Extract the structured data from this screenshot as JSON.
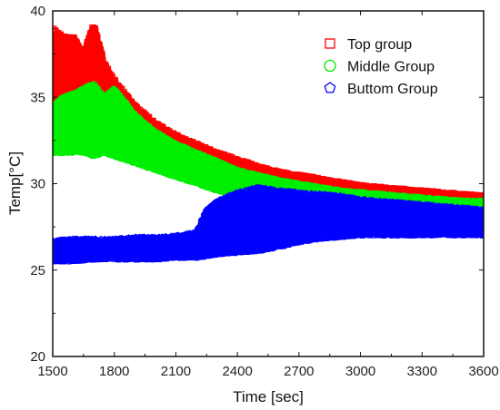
{
  "chart_data": {
    "type": "scatter",
    "title": "",
    "xlabel": "Time [sec]",
    "ylabel": "Temp[°C]",
    "xlim": [
      1500,
      3600
    ],
    "ylim": [
      20,
      40
    ],
    "xticks": [
      1500,
      1800,
      2100,
      2400,
      2700,
      3000,
      3300,
      3600
    ],
    "yticks": [
      20,
      25,
      30,
      35,
      40
    ],
    "grid": false,
    "legend_position": "top-right",
    "series": [
      {
        "name": "Top group",
        "marker": "square",
        "color": "#ff0000",
        "x": [
          1500,
          1550,
          1600,
          1650,
          1700,
          1750,
          1800,
          1900,
          2000,
          2100,
          2200,
          2300,
          2400,
          2500,
          2600,
          2700,
          2800,
          2900,
          3000,
          3100,
          3200,
          3300,
          3400,
          3500,
          3600
        ],
        "low": [
          34.5,
          34.0,
          34.2,
          33.8,
          34.0,
          34.0,
          33.8,
          33.0,
          32.5,
          32.0,
          31.5,
          31.2,
          30.9,
          30.6,
          30.3,
          30.1,
          29.9,
          29.7,
          29.5,
          29.4,
          29.3,
          29.2,
          29.1,
          29.0,
          28.9
        ],
        "high": [
          39.0,
          38.5,
          38.5,
          37.5,
          39.2,
          37.0,
          36.0,
          34.5,
          33.5,
          32.8,
          32.3,
          31.8,
          31.4,
          31.0,
          30.7,
          30.5,
          30.3,
          30.1,
          29.9,
          29.8,
          29.7,
          29.6,
          29.5,
          29.4,
          29.3
        ]
      },
      {
        "name": "Middle Group",
        "marker": "circle",
        "color": "#00ee00",
        "x": [
          1500,
          1550,
          1600,
          1650,
          1700,
          1750,
          1800,
          1900,
          2000,
          2100,
          2200,
          2300,
          2400,
          2500,
          2600,
          2700,
          2800,
          2900,
          3000,
          3100,
          3200,
          3300,
          3400,
          3500,
          3600
        ],
        "low": [
          31.8,
          31.8,
          31.8,
          31.8,
          31.6,
          31.8,
          31.6,
          31.2,
          30.8,
          30.4,
          30.0,
          29.6,
          29.3,
          29.1,
          29.0,
          28.9,
          28.9,
          28.8,
          28.7,
          28.7,
          28.7,
          28.6,
          28.6,
          28.6,
          28.5
        ],
        "high": [
          34.5,
          35.0,
          35.2,
          35.5,
          35.8,
          35.0,
          35.5,
          34.0,
          33.0,
          32.3,
          31.8,
          31.3,
          30.8,
          30.5,
          30.2,
          30.0,
          29.8,
          29.6,
          29.5,
          29.4,
          29.3,
          29.2,
          29.1,
          29.0,
          29.0
        ]
      },
      {
        "name": "Buttom Group",
        "marker": "pentagon",
        "color": "#0000ff",
        "x": [
          1500,
          1600,
          1700,
          1800,
          1900,
          2000,
          2100,
          2200,
          2250,
          2300,
          2400,
          2500,
          2600,
          2700,
          2800,
          2900,
          3000,
          3100,
          3200,
          3300,
          3400,
          3500,
          3600
        ],
        "low": [
          25.5,
          25.5,
          25.6,
          25.6,
          25.6,
          25.6,
          25.7,
          25.7,
          25.8,
          25.9,
          26.0,
          26.1,
          26.3,
          26.6,
          26.8,
          26.9,
          27.0,
          27.0,
          27.0,
          27.0,
          27.0,
          27.0,
          27.0
        ],
        "high": [
          26.7,
          26.8,
          26.8,
          26.8,
          26.9,
          26.9,
          27.0,
          27.2,
          28.5,
          29.0,
          29.5,
          29.8,
          29.6,
          29.5,
          29.4,
          29.3,
          29.1,
          29.0,
          28.9,
          28.8,
          28.7,
          28.6,
          28.5
        ]
      }
    ]
  }
}
